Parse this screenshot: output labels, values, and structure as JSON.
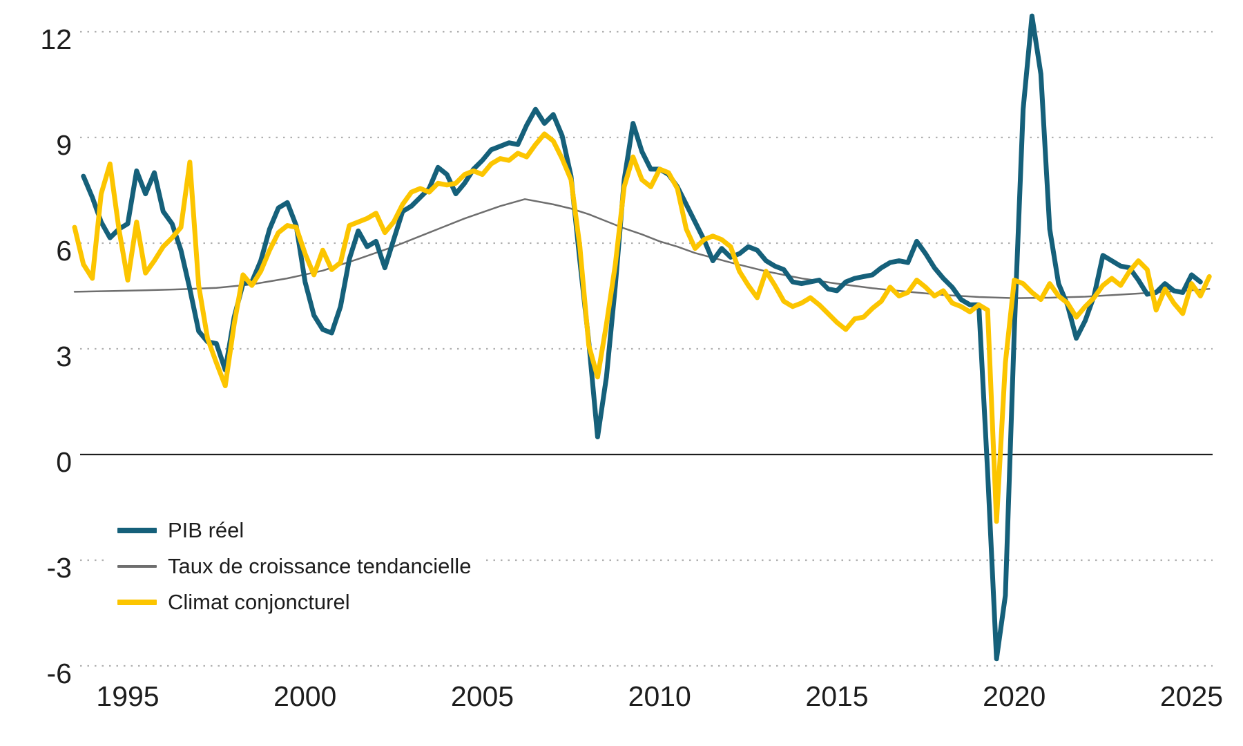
{
  "chart_data": {
    "type": "line",
    "title": "",
    "xlabel": "",
    "ylabel": "",
    "x_ticks": [
      1995,
      2000,
      2005,
      2010,
      2015,
      2020,
      2025
    ],
    "y_ticks": [
      -6,
      -3,
      0,
      3,
      6,
      9,
      12
    ],
    "xlim": [
      1993.4,
      2025.7
    ],
    "ylim": [
      -6.6,
      12.6
    ],
    "grid": "horizontal dotted lines at each y tick, solid black line at zero",
    "legend_position": "inside bottom-left",
    "colors": {
      "grid_dots": "#b0b0b0",
      "zero_axis": "#1d1d1d",
      "tick_text": "#1d1d1d",
      "background": "#ffffff"
    },
    "series": [
      {
        "id": "pib-reel",
        "name": "PIB réel",
        "color": "#15607a",
        "width": 7,
        "start": 1993.75,
        "step": 0.25,
        "values": [
          7.9,
          7.3,
          6.6,
          6.15,
          6.4,
          6.55,
          8.05,
          7.4,
          8.0,
          6.9,
          6.55,
          5.8,
          4.7,
          3.5,
          3.2,
          3.15,
          2.4,
          3.9,
          4.85,
          4.9,
          5.5,
          6.4,
          7.0,
          7.15,
          6.5,
          4.9,
          3.95,
          3.55,
          3.45,
          4.2,
          5.55,
          6.35,
          5.9,
          6.05,
          5.3,
          6.1,
          6.9,
          7.05,
          7.3,
          7.55,
          8.15,
          7.95,
          7.4,
          7.7,
          8.1,
          8.35,
          8.65,
          8.75,
          8.85,
          8.8,
          9.35,
          9.8,
          9.4,
          9.65,
          9.05,
          7.9,
          5.5,
          3.2,
          0.5,
          2.2,
          4.8,
          7.8,
          9.4,
          8.6,
          8.1,
          8.1,
          7.95,
          7.6,
          7.1,
          6.6,
          6.1,
          5.5,
          5.85,
          5.6,
          5.7,
          5.9,
          5.8,
          5.5,
          5.35,
          5.25,
          4.9,
          4.85,
          4.9,
          4.95,
          4.7,
          4.65,
          4.9,
          5.0,
          5.05,
          5.1,
          5.3,
          5.45,
          5.5,
          5.45,
          6.05,
          5.7,
          5.3,
          5.0,
          4.75,
          4.4,
          4.25,
          4.25,
          -0.5,
          -5.8,
          -4.0,
          3.5,
          9.8,
          12.45,
          10.8,
          6.4,
          4.85,
          4.25,
          3.3,
          3.8,
          4.5,
          5.65,
          5.5,
          5.35,
          5.3,
          4.95,
          4.55,
          4.6,
          4.85,
          4.65,
          4.6,
          5.1,
          4.9
        ]
      },
      {
        "id": "tendance",
        "name": "Taux de croissance tendancielle",
        "color": "#6e6e6e",
        "width": 2.5,
        "points": [
          [
            1993.5,
            4.62
          ],
          [
            1994.5,
            4.64
          ],
          [
            1995.5,
            4.66
          ],
          [
            1996.5,
            4.69
          ],
          [
            1997.5,
            4.73
          ],
          [
            1998.5,
            4.83
          ],
          [
            1999.5,
            5.0
          ],
          [
            2000.5,
            5.22
          ],
          [
            2001.5,
            5.55
          ],
          [
            2002.5,
            5.9
          ],
          [
            2003.5,
            6.3
          ],
          [
            2004.5,
            6.7
          ],
          [
            2005.5,
            7.05
          ],
          [
            2006.2,
            7.25
          ],
          [
            2007.0,
            7.1
          ],
          [
            2007.5,
            6.98
          ],
          [
            2008.0,
            6.82
          ],
          [
            2008.5,
            6.62
          ],
          [
            2009.0,
            6.42
          ],
          [
            2009.5,
            6.25
          ],
          [
            2010.0,
            6.05
          ],
          [
            2010.5,
            5.9
          ],
          [
            2011.0,
            5.72
          ],
          [
            2012.0,
            5.45
          ],
          [
            2013.0,
            5.2
          ],
          [
            2014.0,
            5.0
          ],
          [
            2015.0,
            4.85
          ],
          [
            2016.0,
            4.72
          ],
          [
            2017.0,
            4.62
          ],
          [
            2018.0,
            4.53
          ],
          [
            2019.0,
            4.47
          ],
          [
            2020.0,
            4.44
          ],
          [
            2021.0,
            4.45
          ],
          [
            2022.0,
            4.48
          ],
          [
            2023.0,
            4.54
          ],
          [
            2024.0,
            4.6
          ],
          [
            2025.0,
            4.66
          ],
          [
            2025.5,
            4.7
          ]
        ]
      },
      {
        "id": "climat",
        "name": "Climat conjoncturel",
        "color": "#fcc500",
        "width": 7,
        "start": 1993.5,
        "step": 0.25,
        "values": [
          6.45,
          5.4,
          5.0,
          7.4,
          8.25,
          6.4,
          4.95,
          6.6,
          5.15,
          5.5,
          5.9,
          6.15,
          6.45,
          8.3,
          4.8,
          3.3,
          2.6,
          1.95,
          3.7,
          5.1,
          4.8,
          5.2,
          5.8,
          6.3,
          6.5,
          6.45,
          5.7,
          5.1,
          5.8,
          5.25,
          5.45,
          6.5,
          6.6,
          6.7,
          6.85,
          6.3,
          6.6,
          7.1,
          7.45,
          7.55,
          7.45,
          7.7,
          7.65,
          7.7,
          7.95,
          8.05,
          7.95,
          8.25,
          8.4,
          8.35,
          8.55,
          8.45,
          8.8,
          9.1,
          8.9,
          8.4,
          7.8,
          5.9,
          3.1,
          2.2,
          3.7,
          5.4,
          7.6,
          8.45,
          7.8,
          7.6,
          8.1,
          8.0,
          7.55,
          6.4,
          5.85,
          6.1,
          6.2,
          6.1,
          5.9,
          5.2,
          4.8,
          4.45,
          5.2,
          4.8,
          4.35,
          4.2,
          4.3,
          4.45,
          4.25,
          4.0,
          3.75,
          3.55,
          3.85,
          3.9,
          4.15,
          4.35,
          4.75,
          4.5,
          4.6,
          4.95,
          4.75,
          4.5,
          4.65,
          4.3,
          4.2,
          4.05,
          4.25,
          4.1,
          -1.9,
          2.6,
          4.95,
          4.85,
          4.6,
          4.4,
          4.85,
          4.5,
          4.3,
          3.9,
          4.2,
          4.45,
          4.8,
          5.0,
          4.8,
          5.2,
          5.5,
          5.25,
          4.1,
          4.7,
          4.3,
          4.0,
          4.85,
          4.5,
          5.05
        ]
      }
    ]
  },
  "legend": {
    "items": [
      {
        "label": "PIB réel"
      },
      {
        "label": "Taux de croissance tendancielle"
      },
      {
        "label": "Climat conjoncturel"
      }
    ]
  }
}
